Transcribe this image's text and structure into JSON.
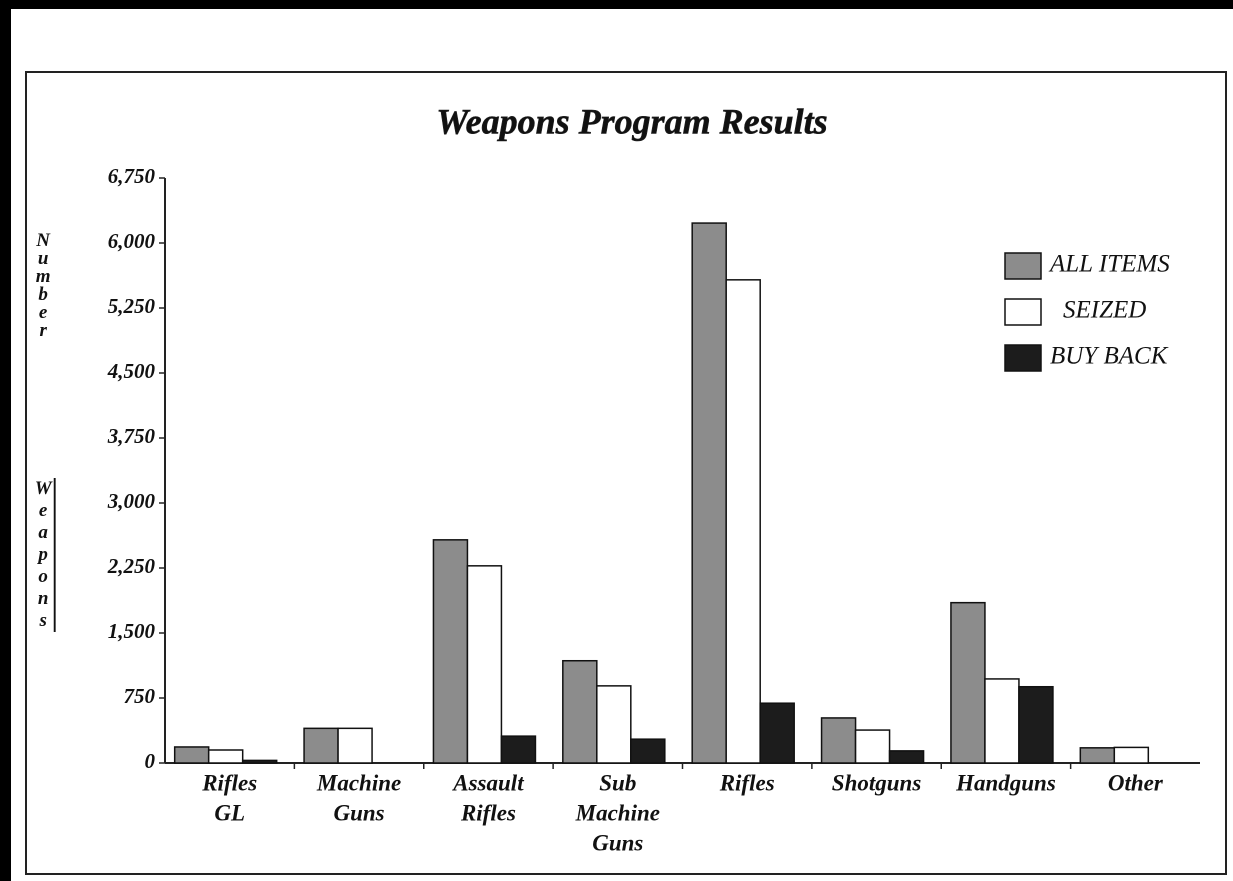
{
  "chart_data": {
    "type": "bar",
    "title": "Weapons Program Results",
    "y_label": [
      "Number",
      "Weapons"
    ],
    "categories": [
      [
        "Rifles",
        "GL"
      ],
      [
        "Machine",
        "Guns"
      ],
      [
        "Assault",
        "Rifles"
      ],
      [
        "Sub",
        "Machine",
        "Guns"
      ],
      [
        "Rifles"
      ],
      [
        "Shotguns"
      ],
      [
        "Handguns"
      ],
      [
        "Other"
      ]
    ],
    "series": [
      {
        "name": "ALL ITEMS",
        "color": "#8c8c8c",
        "values": [
          185,
          400,
          2575,
          1180,
          6230,
          520,
          1850,
          175
        ]
      },
      {
        "name": "SEIZED",
        "color": "#ffffff",
        "values": [
          150,
          400,
          2275,
          890,
          5575,
          380,
          970,
          180
        ]
      },
      {
        "name": "BUY BACK",
        "color": "#1c1c1c",
        "values": [
          30,
          0,
          310,
          275,
          690,
          140,
          880,
          0
        ]
      }
    ],
    "ylim": [
      0,
      6750
    ],
    "yticks": [
      0,
      750,
      {
        "value": 1500,
        "label": "1,500"
      },
      {
        "value": 2250,
        "label": "2,250"
      },
      {
        "value": 3000,
        "label": "3,000"
      },
      {
        "value": 3750,
        "label": "3,750"
      },
      {
        "value": 4500,
        "label": "4,500"
      },
      {
        "value": 5250,
        "label": "5,250"
      },
      {
        "value": 6000,
        "label": "6,000"
      },
      {
        "value": 6750,
        "label": "6,750"
      }
    ],
    "legend": "upper right",
    "grid": false
  }
}
